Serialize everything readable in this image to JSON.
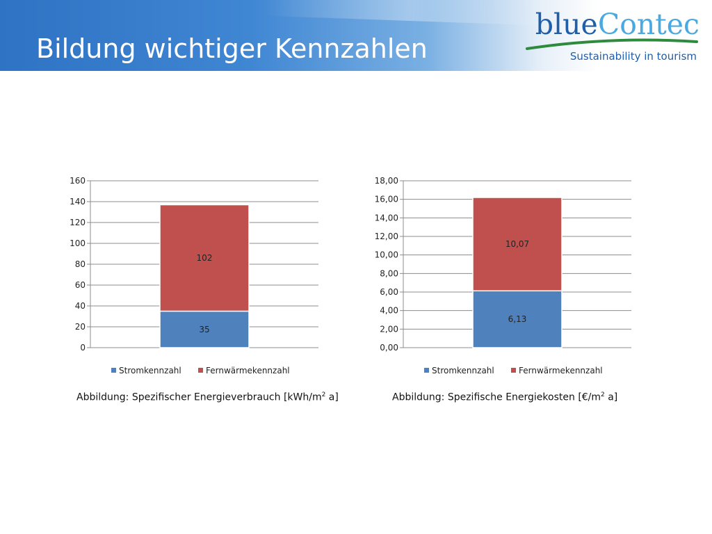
{
  "slide": {
    "title": "Bildung wichtiger Kennzahlen"
  },
  "logo": {
    "wordmark_part1": "blue",
    "wordmark_part2": "Contec",
    "tagline": "Sustainability in tourism"
  },
  "captions": {
    "left": {
      "prefix": "Abbildung: Spezifischer Energieverbrauch [kWh/m",
      "sup": "2",
      "suffix": " a]"
    },
    "right": {
      "prefix": "Abbildung: Spezifische Energiekosten [€/m",
      "sup": "2",
      "suffix": " a]"
    }
  },
  "colors": {
    "header_blue": "#2f73c4",
    "logo_blue": "#1f5ea8",
    "strom": "#4f81bd",
    "fernwaerme": "#c0504d",
    "gridline": "#8c8c8c"
  },
  "chart_data": [
    {
      "type": "bar",
      "stacked": true,
      "categories": [
        ""
      ],
      "series": [
        {
          "name": "Stromkennzahl",
          "values": [
            35
          ],
          "labels": [
            "35"
          ]
        },
        {
          "name": "Fernwärmekennzahl",
          "values": [
            102
          ],
          "labels": [
            "102"
          ]
        }
      ],
      "ylim": [
        0,
        160
      ],
      "yticks": [
        "0",
        "20",
        "40",
        "60",
        "80",
        "100",
        "120",
        "140",
        "160"
      ],
      "title": "",
      "xlabel": "",
      "ylabel": "",
      "grid": true,
      "legend": "bottom"
    },
    {
      "type": "bar",
      "stacked": true,
      "categories": [
        ""
      ],
      "series": [
        {
          "name": "Stromkennzahl",
          "values": [
            6.13
          ],
          "labels": [
            "6,13"
          ]
        },
        {
          "name": "Fernwärmekennzahl",
          "values": [
            10.07
          ],
          "labels": [
            "10,07"
          ]
        }
      ],
      "ylim": [
        0,
        18
      ],
      "yticks": [
        "0,00",
        "2,00",
        "4,00",
        "6,00",
        "8,00",
        "10,00",
        "12,00",
        "14,00",
        "16,00",
        "18,00"
      ],
      "title": "",
      "xlabel": "",
      "ylabel": "",
      "grid": true,
      "legend": "bottom"
    }
  ]
}
